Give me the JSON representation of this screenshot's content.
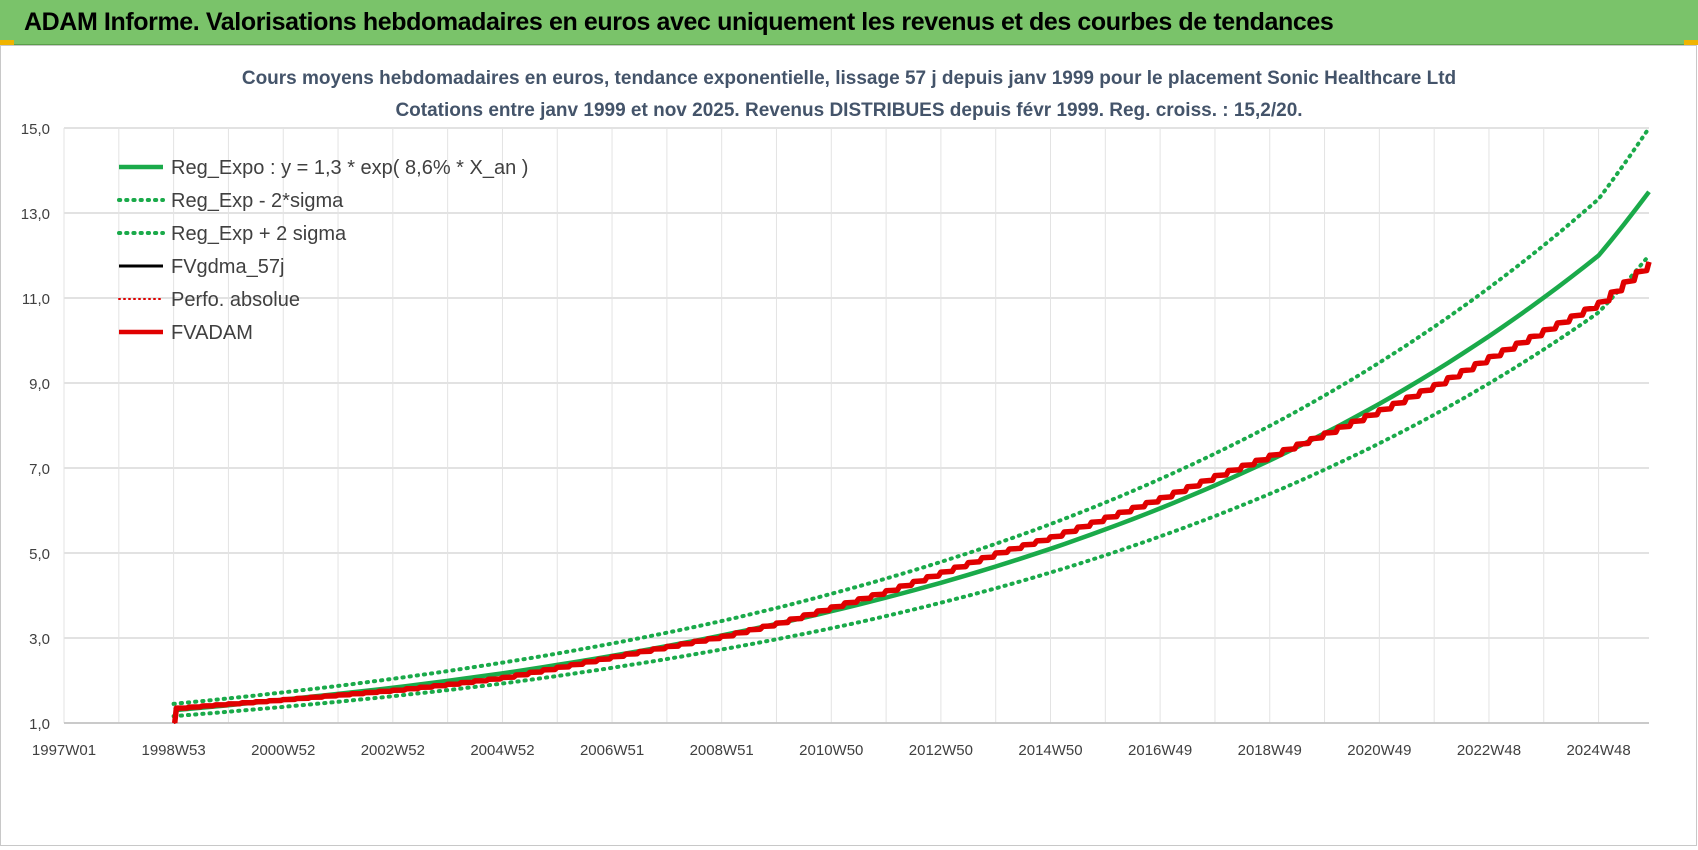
{
  "header": {
    "title": "ADAM Informe. Valorisations hebdomadaires en euros avec uniquement les revenus et des courbes de tendances"
  },
  "chart_data": {
    "type": "line",
    "title_line1": "Cours moyens hebdomadaires en euros, tendance exponentielle, lissage 57 j depuis janv 1999 pour le placement Sonic Healthcare Ltd",
    "title_line2": "Cotations entre janv 1999 et nov 2025. Revenus DISTRIBUES depuis févr 1999. Reg. croiss. : 15,2/20.",
    "xlabel": "",
    "ylabel": "",
    "x_tick_labels": [
      "1997W01",
      "1998W53",
      "2000W52",
      "2002W52",
      "2004W52",
      "2006W51",
      "2008W51",
      "2010W50",
      "2012W50",
      "2014W50",
      "2016W49",
      "2018W49",
      "2020W49",
      "2022W48",
      "2024W48"
    ],
    "x_range_years": [
      1997.0,
      2025.92
    ],
    "ylim": [
      1.0,
      15.0
    ],
    "y_ticks": [
      1.0,
      3.0,
      5.0,
      7.0,
      9.0,
      11.0,
      13.0,
      15.0
    ],
    "y_tick_labels": [
      "1,0",
      "3,0",
      "5,0",
      "7,0",
      "9,0",
      "11,0",
      "13,0",
      "15,0"
    ],
    "grid": true,
    "legend_position": "top-left",
    "series": [
      {
        "name": "Reg_Expo : y = 1,3 * exp( 8,6% *  X_an )",
        "key": "reg",
        "color": "#1aaa4a",
        "style": "solid",
        "x": [
          1999,
          2001,
          2003,
          2005,
          2007,
          2009,
          2011,
          2013,
          2015,
          2017,
          2019,
          2021,
          2023,
          2025,
          2025.92
        ],
        "y": [
          1.3,
          1.55,
          1.83,
          2.17,
          2.58,
          3.06,
          3.63,
          4.3,
          5.1,
          6.05,
          7.18,
          8.51,
          10.1,
          12.0,
          13.5
        ]
      },
      {
        "name": "Reg_Exp - 2*sigma",
        "key": "low",
        "color": "#1aaa4a",
        "style": "dotted",
        "x": [
          1999,
          2001,
          2003,
          2005,
          2007,
          2009,
          2011,
          2013,
          2015,
          2017,
          2019,
          2021,
          2023,
          2025,
          2025.92
        ],
        "y": [
          1.16,
          1.38,
          1.63,
          1.93,
          2.3,
          2.73,
          3.23,
          3.83,
          4.54,
          5.39,
          6.39,
          7.58,
          8.99,
          10.66,
          12.0
        ]
      },
      {
        "name": "Reg_Exp + 2 sigma",
        "key": "high",
        "color": "#1aaa4a",
        "style": "dotted",
        "x": [
          1999,
          2001,
          2003,
          2005,
          2007,
          2009,
          2011,
          2013,
          2015,
          2017,
          2019,
          2021,
          2023,
          2025,
          2025.92
        ],
        "y": [
          1.45,
          1.72,
          2.04,
          2.42,
          2.87,
          3.4,
          4.04,
          4.79,
          5.68,
          6.74,
          7.99,
          9.48,
          11.24,
          13.33,
          15.0
        ]
      },
      {
        "name": "FVgdma_57j",
        "key": "fvgdma",
        "color": "#000000",
        "style": "solid",
        "x": [
          1999.02,
          1999.05,
          2000,
          2001,
          2002,
          2003,
          2004,
          2005,
          2006,
          2007,
          2008,
          2009,
          2010,
          2011,
          2012,
          2013,
          2014,
          2015,
          2016,
          2017,
          2018,
          2019,
          2020,
          2021,
          2022,
          2023,
          2024,
          2025,
          2025.92
        ],
        "y": [
          1.0,
          1.35,
          1.45,
          1.55,
          1.66,
          1.77,
          1.91,
          2.07,
          2.31,
          2.56,
          2.8,
          3.04,
          3.35,
          3.73,
          4.11,
          4.55,
          5.0,
          5.38,
          5.84,
          6.3,
          6.82,
          7.3,
          7.82,
          8.37,
          8.96,
          9.62,
          10.25,
          10.9,
          11.85
        ]
      },
      {
        "name": "Perfo. absolue",
        "key": "perfo",
        "color": "#e00000",
        "style": "dotted",
        "x": [
          1999.02,
          1999.05,
          2000,
          2001,
          2002,
          2003,
          2004,
          2005,
          2006,
          2007,
          2008,
          2009,
          2010,
          2011,
          2012,
          2013,
          2014,
          2015,
          2016,
          2017,
          2018,
          2019,
          2020,
          2021,
          2022,
          2023,
          2024,
          2025,
          2025.92
        ],
        "y": [
          1.0,
          1.35,
          1.45,
          1.55,
          1.66,
          1.77,
          1.91,
          2.07,
          2.31,
          2.56,
          2.8,
          3.04,
          3.35,
          3.73,
          4.11,
          4.55,
          5.0,
          5.38,
          5.84,
          6.3,
          6.82,
          7.3,
          7.82,
          8.37,
          8.96,
          9.62,
          10.25,
          10.9,
          11.85
        ]
      },
      {
        "name": "FVADAM",
        "key": "fvadam",
        "color": "#e00000",
        "style": "solid",
        "x": [
          1999.02,
          1999.05,
          2000,
          2001,
          2002,
          2003,
          2004,
          2005,
          2006,
          2007,
          2008,
          2009,
          2010,
          2011,
          2012,
          2013,
          2014,
          2015,
          2016,
          2017,
          2018,
          2019,
          2020,
          2021,
          2022,
          2023,
          2024,
          2025,
          2025.92
        ],
        "y": [
          1.0,
          1.35,
          1.45,
          1.55,
          1.66,
          1.77,
          1.91,
          2.07,
          2.31,
          2.56,
          2.8,
          3.04,
          3.35,
          3.73,
          4.11,
          4.55,
          5.0,
          5.38,
          5.84,
          6.3,
          6.82,
          7.3,
          7.82,
          8.37,
          8.96,
          9.62,
          10.25,
          10.9,
          11.85
        ]
      }
    ]
  }
}
